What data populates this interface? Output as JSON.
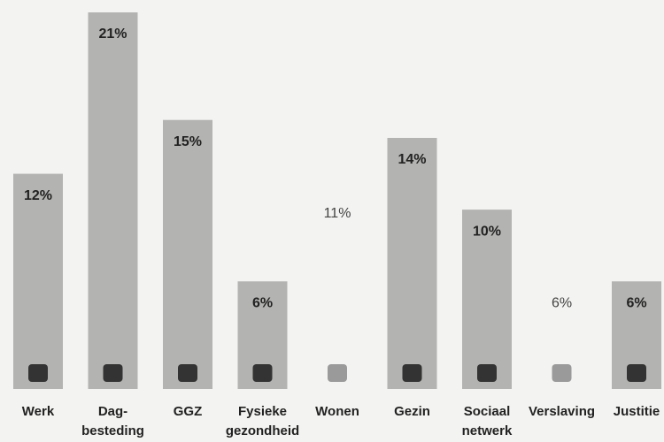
{
  "chart_data": {
    "type": "bar",
    "categories": [
      [
        "Werk"
      ],
      [
        "Dag-",
        "besteding"
      ],
      [
        "GGZ"
      ],
      [
        "Fysieke",
        "gezondheid"
      ],
      [
        "Wonen"
      ],
      [
        "Gezin"
      ],
      [
        "Sociaal",
        "netwerk"
      ],
      [
        "Verslaving"
      ],
      [
        "Justitie"
      ]
    ],
    "values": [
      12,
      21,
      15,
      6,
      11,
      14,
      10,
      6,
      6
    ],
    "value_labels": [
      "12%",
      "21%",
      "15%",
      "6%",
      "11%",
      "14%",
      "10%",
      "6%",
      "6%"
    ],
    "colors": [
      "#b3b3b1",
      "#b3b3b1",
      "#b3b3b1",
      "#b3b3b1",
      "#f3f3f1",
      "#b3b3b1",
      "#b3b3b1",
      "#f3f3f1",
      "#b3b3b1"
    ]
  }
}
